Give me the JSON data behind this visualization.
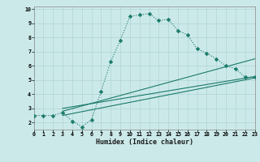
{
  "title": "",
  "xlabel": "Humidex (Indice chaleur)",
  "xlim": [
    0,
    23
  ],
  "ylim": [
    1.5,
    10.2
  ],
  "yticks": [
    2,
    3,
    4,
    5,
    6,
    7,
    8,
    9,
    10
  ],
  "xticks": [
    0,
    1,
    2,
    3,
    4,
    5,
    6,
    7,
    8,
    9,
    10,
    11,
    12,
    13,
    14,
    15,
    16,
    17,
    18,
    19,
    20,
    21,
    22,
    23
  ],
  "bg_color": "#cce9e9",
  "grid_color": "#aed4d4",
  "line_color": "#1a7a6a",
  "main_x": [
    0,
    1,
    2,
    3,
    4,
    5,
    6,
    7,
    8,
    9,
    10,
    11,
    12,
    13,
    14,
    15,
    16,
    17,
    18,
    19,
    20,
    21,
    22,
    23
  ],
  "main_y": [
    2.5,
    2.5,
    2.5,
    2.7,
    2.1,
    1.7,
    2.2,
    4.2,
    6.3,
    7.8,
    9.5,
    9.6,
    9.7,
    9.2,
    9.3,
    8.5,
    8.2,
    7.2,
    6.9,
    6.5,
    6.0,
    5.8,
    5.2,
    5.2
  ],
  "lines": [
    {
      "x": [
        3,
        23
      ],
      "y": [
        3.0,
        5.25
      ]
    },
    {
      "x": [
        3,
        23
      ],
      "y": [
        2.5,
        5.15
      ]
    },
    {
      "x": [
        3,
        23
      ],
      "y": [
        2.8,
        6.5
      ]
    }
  ]
}
